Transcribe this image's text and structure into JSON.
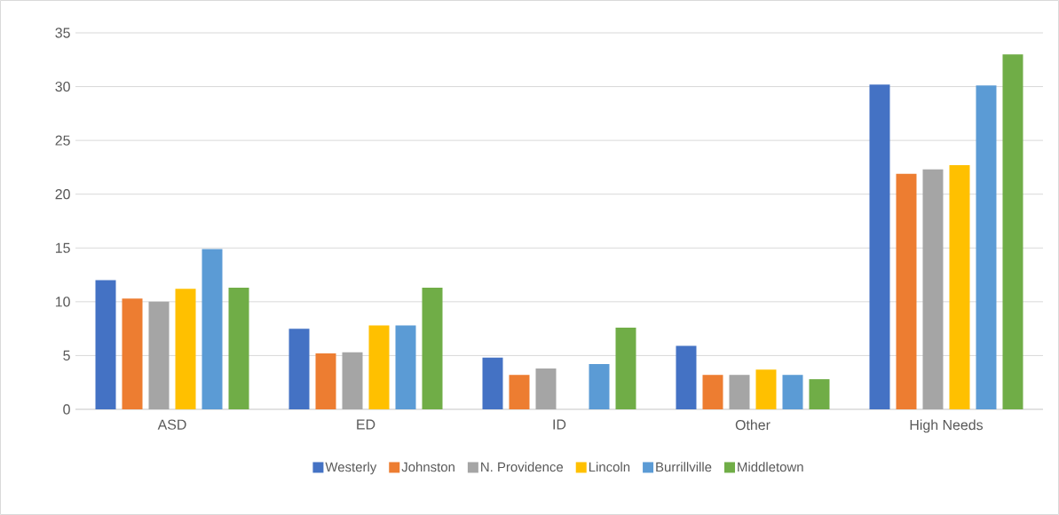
{
  "chart_data": {
    "type": "bar",
    "categories": [
      "ASD",
      "ED",
      "ID",
      "Other",
      "High Needs"
    ],
    "series": [
      {
        "name": "Westerly",
        "color": "#4472c4",
        "values": [
          12,
          7.5,
          4.8,
          5.9,
          30.2
        ]
      },
      {
        "name": "Johnston",
        "color": "#ed7d31",
        "values": [
          10.3,
          5.2,
          3.2,
          3.2,
          21.9
        ]
      },
      {
        "name": "N. Providence",
        "color": "#a5a5a5",
        "values": [
          10,
          5.3,
          3.8,
          3.2,
          22.3
        ]
      },
      {
        "name": "Lincoln",
        "color": "#ffc000",
        "values": [
          11.2,
          7.8,
          null,
          3.7,
          22.7
        ]
      },
      {
        "name": "Burrillville",
        "color": "#5b9bd5",
        "values": [
          14.9,
          7.8,
          4.2,
          3.2,
          30.1
        ]
      },
      {
        "name": "Middletown",
        "color": "#70ad47",
        "values": [
          11.3,
          11.3,
          7.6,
          2.8,
          33.0
        ]
      }
    ],
    "ylim": [
      0,
      35
    ],
    "yticks": [
      0,
      5,
      10,
      15,
      20,
      25,
      30,
      35
    ],
    "grid": "y",
    "legend": "bottom"
  }
}
